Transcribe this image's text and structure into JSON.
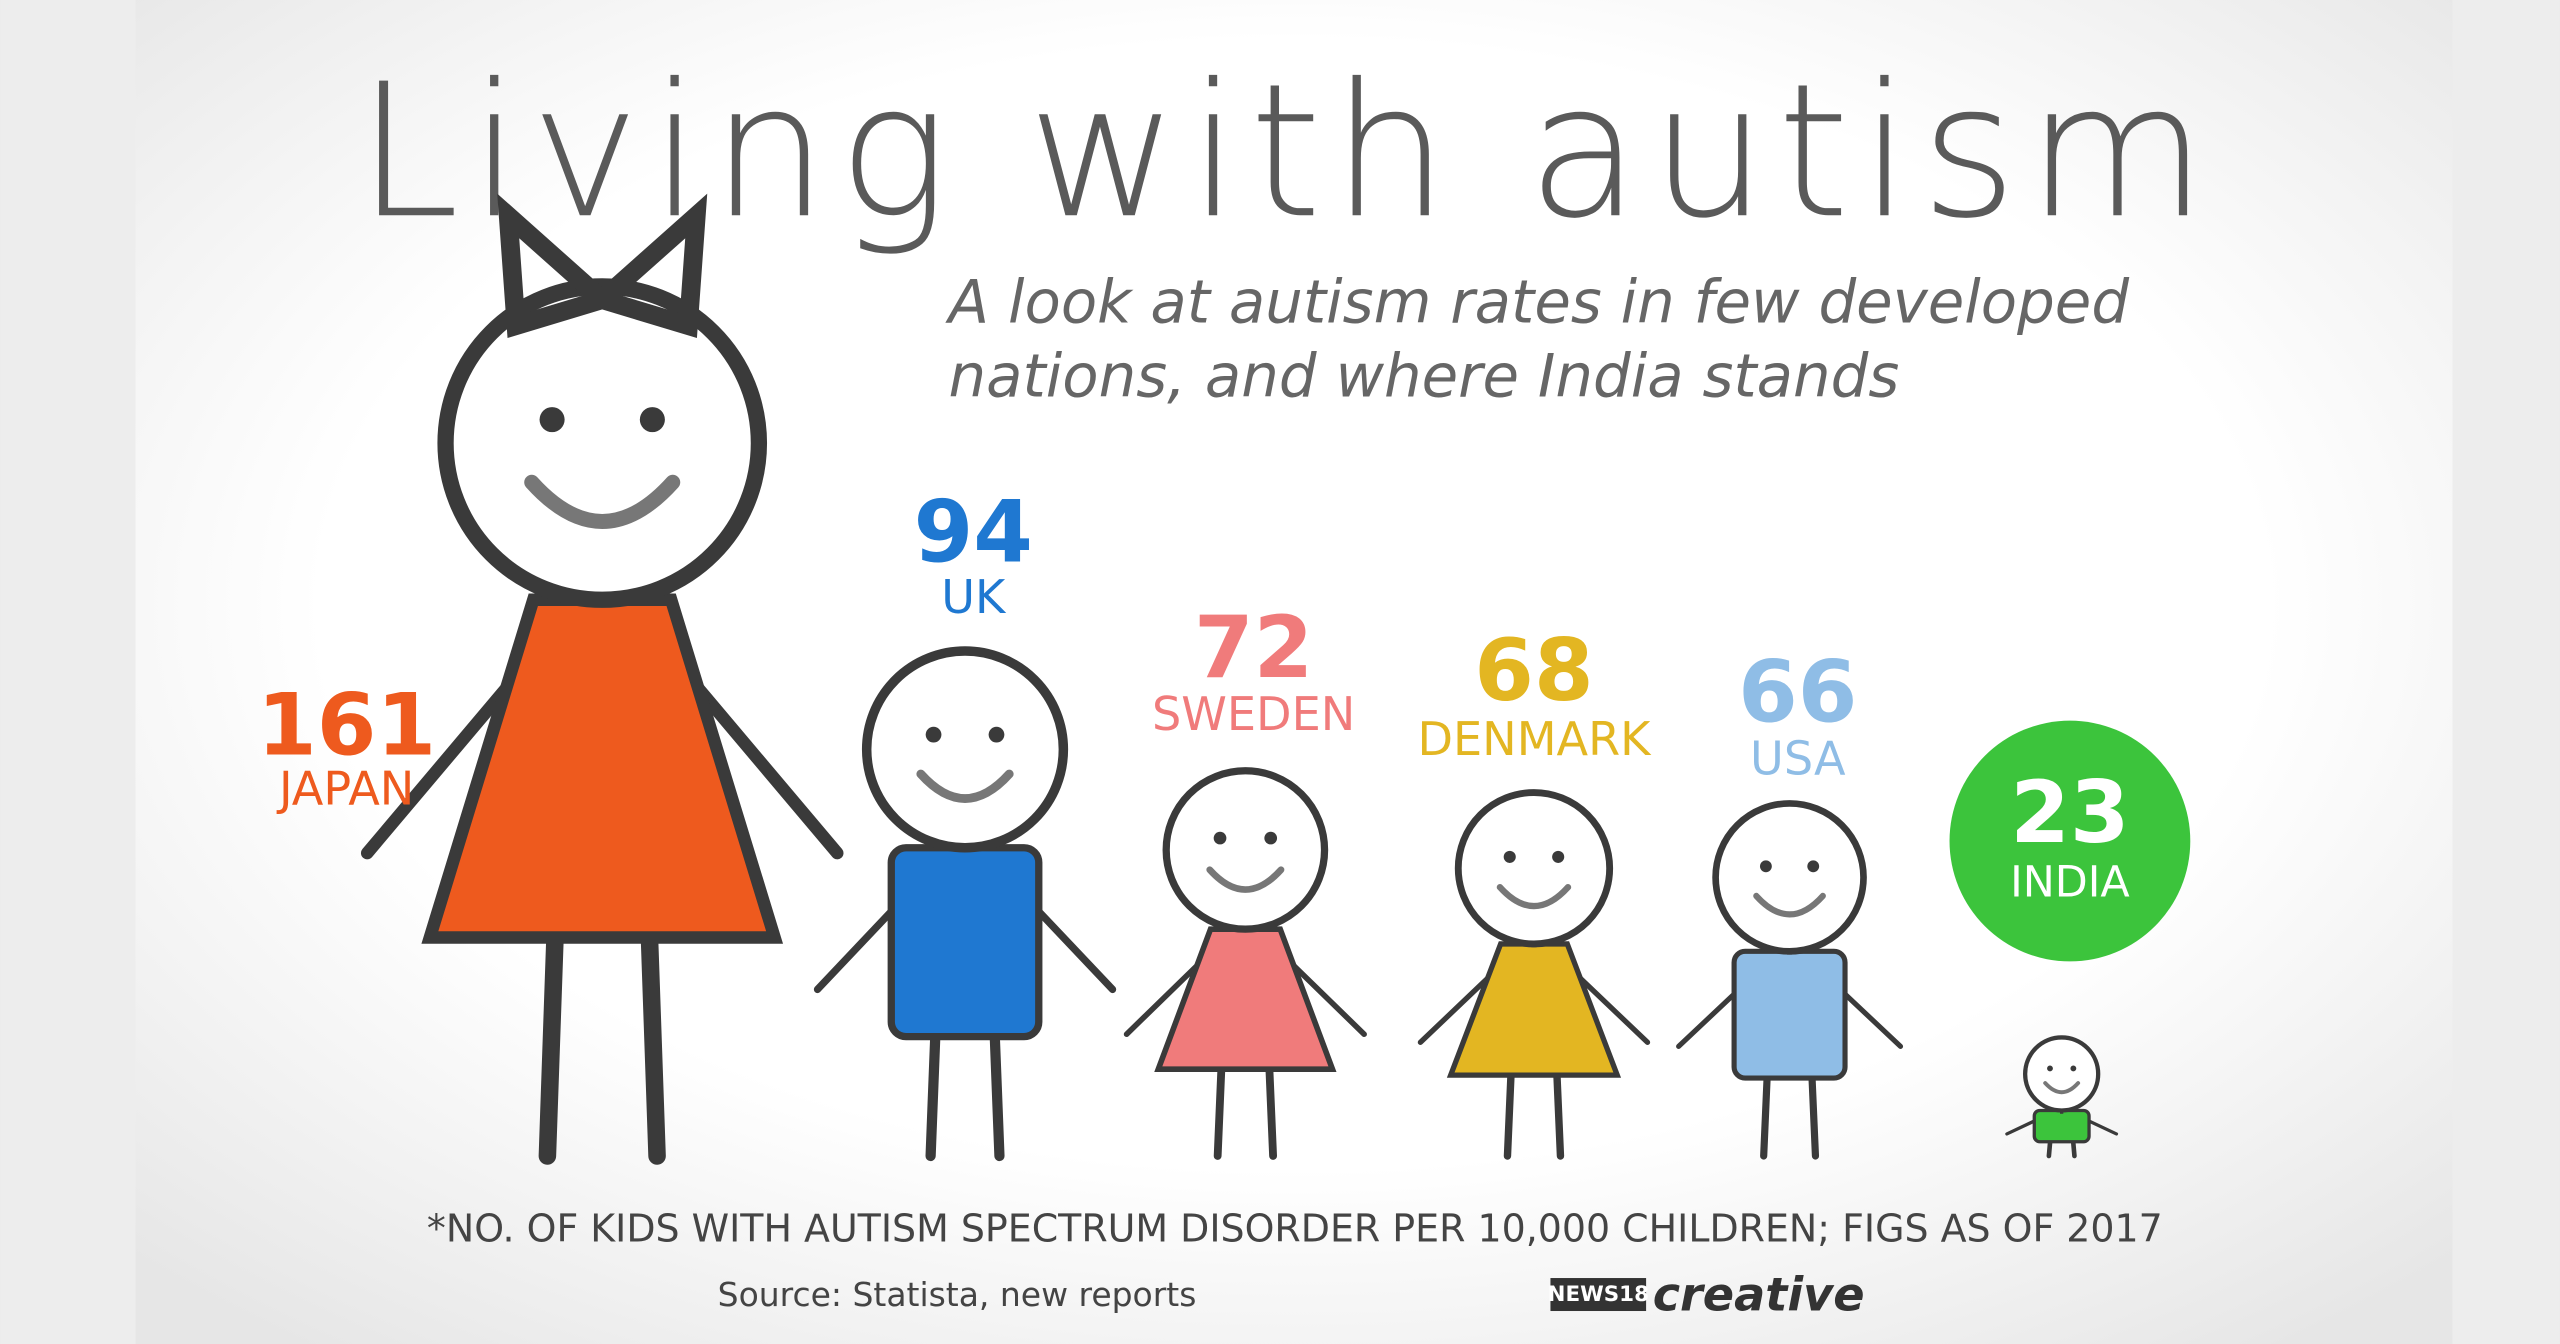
{
  "chart_data": {
    "type": "pictograph",
    "title": "Living with autism",
    "subtitle": [
      "A look at autism rates in few developed",
      "nations, and where India stands"
    ],
    "categories": [
      "JAPAN",
      "UK",
      "SWEDEN",
      "DENMARK",
      "USA",
      "INDIA"
    ],
    "values": [
      161,
      94,
      72,
      68,
      66,
      23
    ],
    "colors": [
      "#ee5a1e",
      "#1f78d1",
      "#f07b7b",
      "#e3b622",
      "#8fbde6",
      "#3cc43c"
    ],
    "footnote": "*NO. OF KIDS WITH AUTISM SPECTRUM DISORDER PER 10,000 CHILDREN; FIGS AS OF 2017",
    "source": "Source: Statista, new reports",
    "logo": "NEWS18",
    "credit": "creative"
  }
}
